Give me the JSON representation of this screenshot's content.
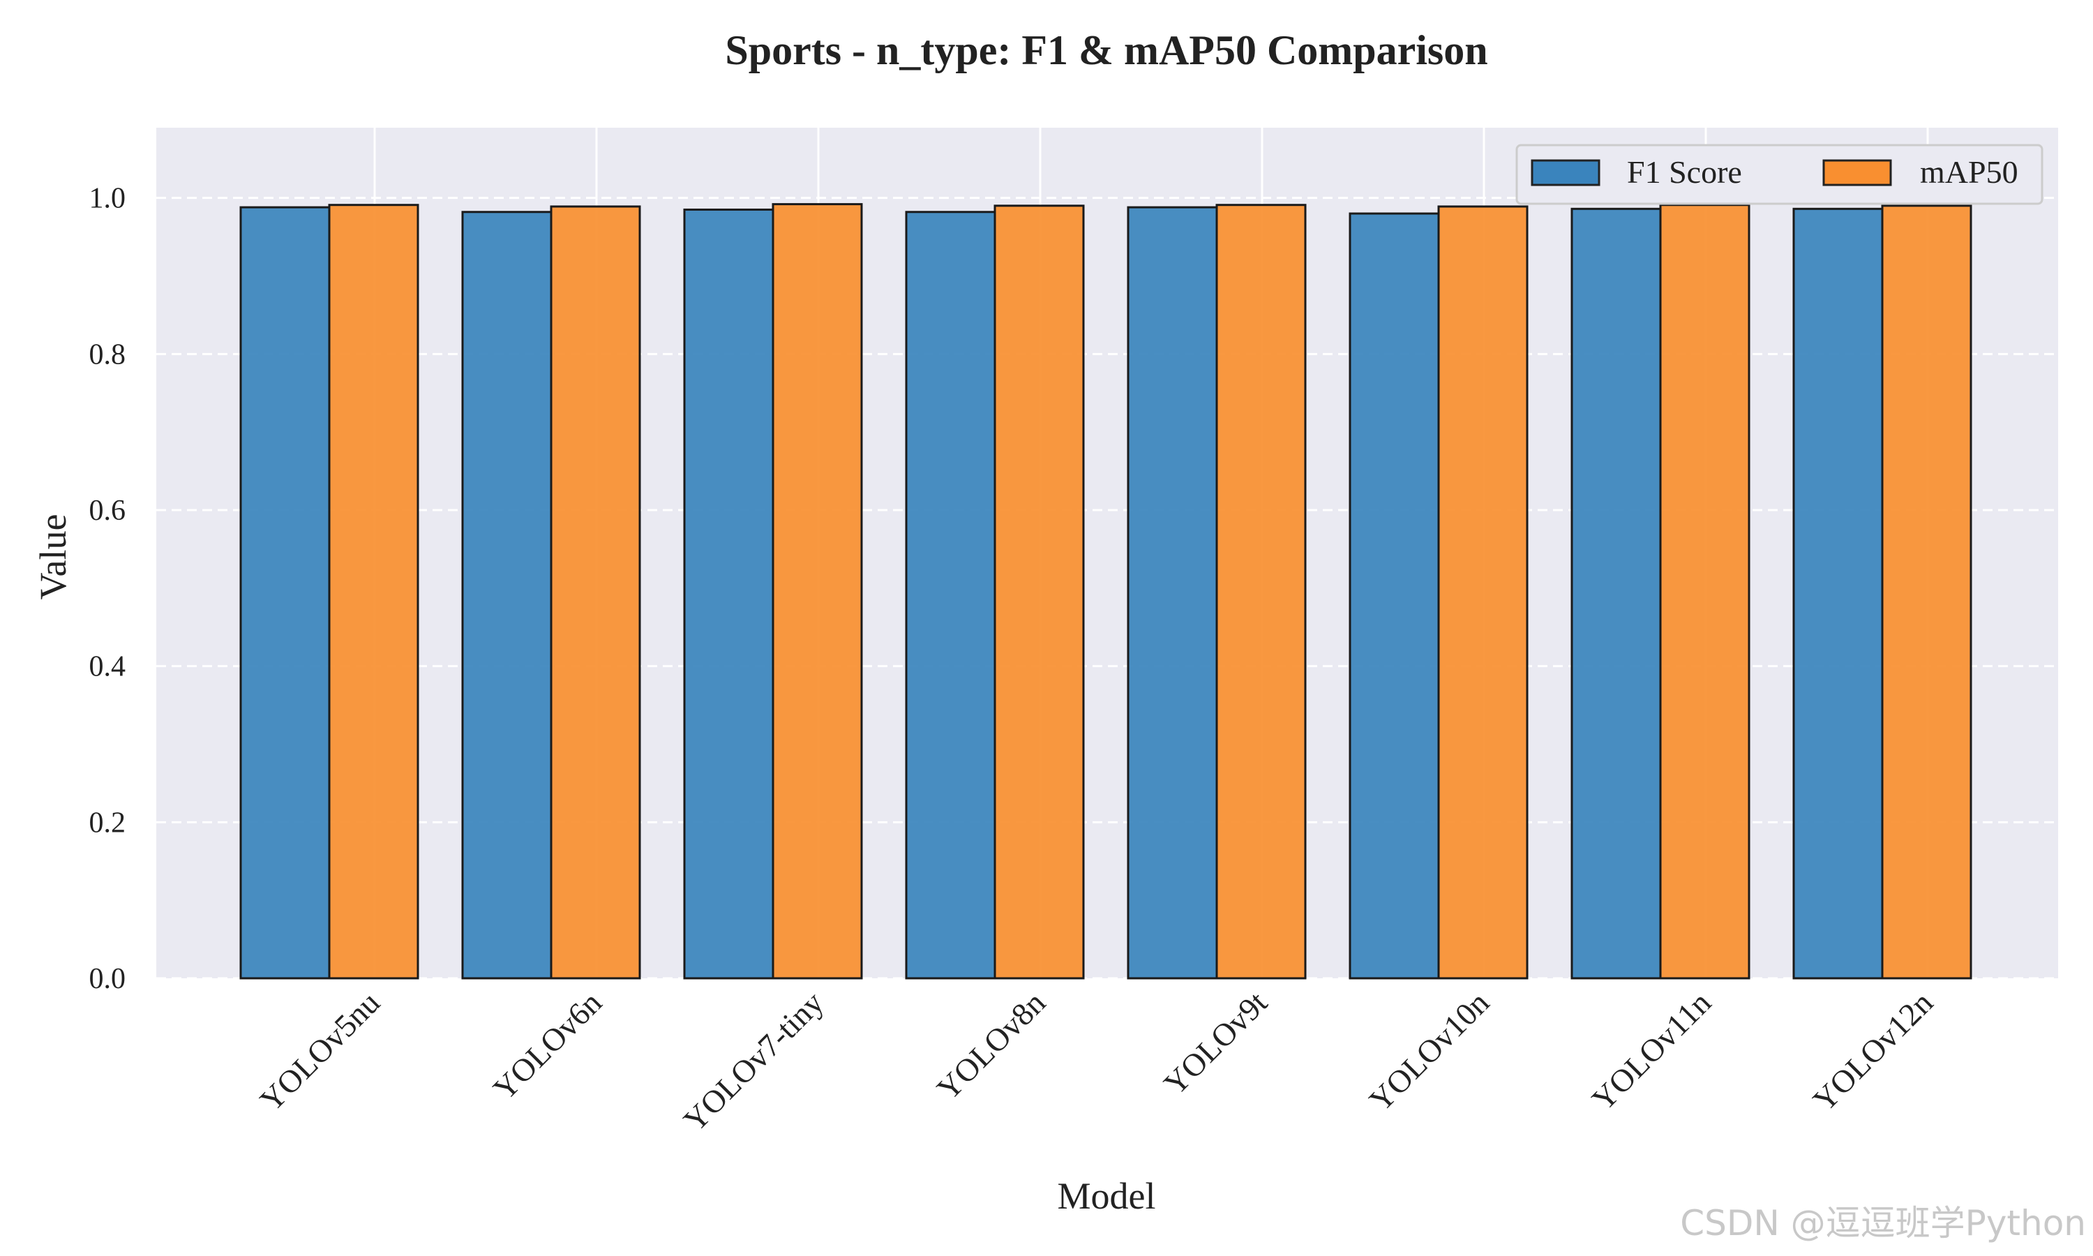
{
  "chart_data": {
    "type": "bar",
    "title": "Sports - n_type: F1 & mAP50 Comparison",
    "xlabel": "Model",
    "ylabel": "Value",
    "ylim": [
      0,
      1.09
    ],
    "yticks": [
      "0.0",
      "0.2",
      "0.4",
      "0.6",
      "0.8",
      "1.0"
    ],
    "categories": [
      "YOLOv5nu",
      "YOLOv6n",
      "YOLOv7-tiny",
      "YOLOv8n",
      "YOLOv9t",
      "YOLOv10n",
      "YOLOv11n",
      "YOLOv12n"
    ],
    "series": [
      {
        "name": "F1 Score",
        "color": "#3a84bd",
        "values": [
          0.988,
          0.982,
          0.985,
          0.982,
          0.988,
          0.98,
          0.986,
          0.986
        ]
      },
      {
        "name": "mAP50",
        "color": "#f98f30",
        "values": [
          0.991,
          0.989,
          0.992,
          0.99,
          0.991,
          0.989,
          0.991,
          0.99
        ]
      }
    ],
    "grid": true,
    "grid_style": "dashed-horizontal",
    "legend_position": "top-right",
    "background_color": "#eaeaf2"
  },
  "watermark": "CSDN @逗逗班学Python"
}
